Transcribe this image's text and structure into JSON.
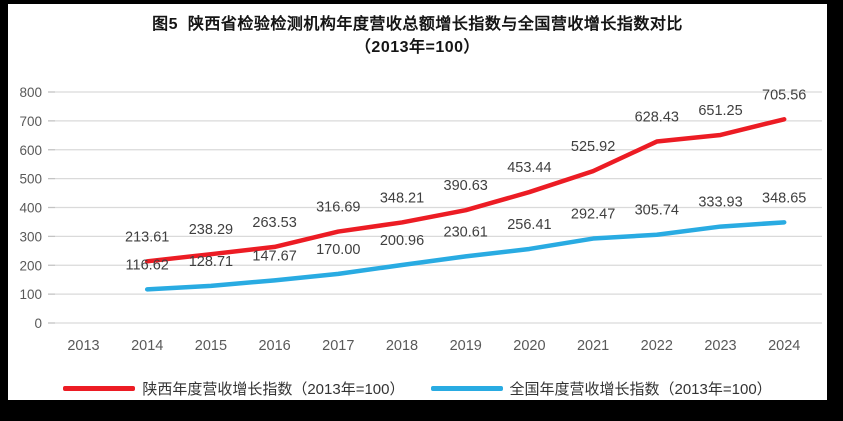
{
  "title": {
    "line1": "图5  陕西省检验检测机构年度营收总额增长指数与全国营收增长指数对比",
    "line2": "（2013年=100）"
  },
  "legend": {
    "items": [
      {
        "label": "陕西年度营收增长指数（2013年=100）",
        "color": "#ec1c24"
      },
      {
        "label": "全国年度营收增长指数（2013年=100）",
        "color": "#29abe2"
      }
    ]
  },
  "chart_data": {
    "type": "line",
    "title": "图5 陕西省检验检测机构年度营收总额增长指数与全国营收增长指数对比（2013年=100）",
    "categories": [
      "2013",
      "2014",
      "2015",
      "2016",
      "2017",
      "2018",
      "2019",
      "2020",
      "2021",
      "2022",
      "2023",
      "2024"
    ],
    "series": [
      {
        "name": "陕西年度营收增长指数（2013年=100）",
        "color": "#ec1c24",
        "values": [
          null,
          213.61,
          238.29,
          263.53,
          316.69,
          348.21,
          390.63,
          453.44,
          525.92,
          628.43,
          651.25,
          705.56
        ]
      },
      {
        "name": "全国年度营收增长指数（2013年=100）",
        "color": "#29abe2",
        "values": [
          null,
          116.62,
          128.71,
          147.67,
          170.0,
          200.96,
          230.61,
          256.41,
          292.47,
          305.74,
          333.93,
          348.65
        ]
      }
    ],
    "ylim": [
      0,
      800
    ],
    "yticks": [
      0,
      100,
      200,
      300,
      400,
      500,
      600,
      700,
      800
    ],
    "grid": true,
    "data_labels": true,
    "label_decimals": 2,
    "legend_position": "bottom",
    "axis_text_color": "#595959",
    "data_label_color": "#3f3f3f",
    "gridline_color": "#dadada"
  }
}
